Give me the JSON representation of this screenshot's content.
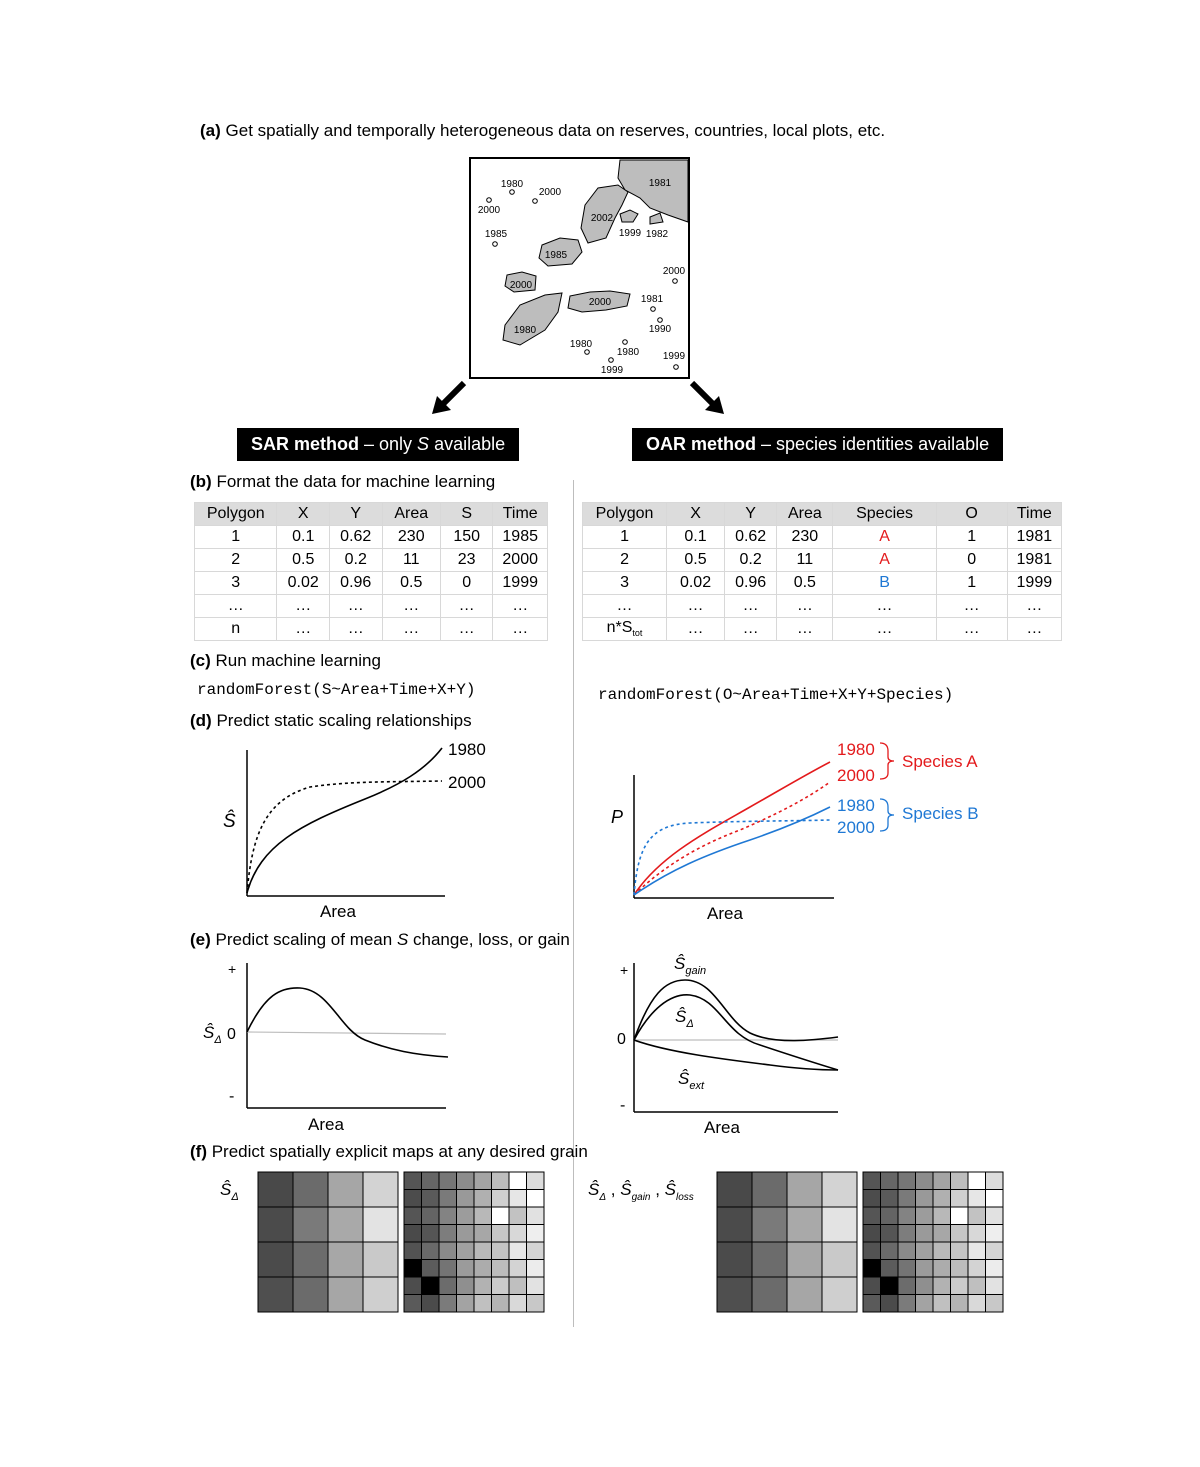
{
  "steps": {
    "a": {
      "letter": "(a)",
      "text": "Get spatially and temporally heterogeneous data on reserves, countries, local plots, etc."
    },
    "b": {
      "letter": "(b)",
      "text": "Format the data for machine learning"
    },
    "c": {
      "letter": "(c)",
      "text": "Run machine learning"
    },
    "d": {
      "letter": "(d)",
      "text": "Predict static scaling relationships"
    },
    "e": {
      "letter": "(e)",
      "text_pre": "Predict scaling of mean ",
      "text_s": "S",
      "text_post": " change, loss, or gain"
    },
    "f": {
      "letter": "(f)",
      "text": "Predict spatially explicit maps at any desired grain"
    }
  },
  "map": {
    "points": [
      {
        "label": "1980"
      },
      {
        "label": "2000"
      },
      {
        "label": "2000"
      },
      {
        "label": "1985"
      },
      {
        "label": "2000"
      },
      {
        "label": "1981"
      },
      {
        "label": "1990"
      },
      {
        "label": "1999"
      },
      {
        "label": "1980"
      },
      {
        "label": "1980"
      },
      {
        "label": "1999"
      }
    ],
    "polygons": [
      {
        "label": "1981"
      },
      {
        "label": "2002"
      },
      {
        "label": "1999"
      },
      {
        "label": "1982"
      },
      {
        "label": "1985"
      },
      {
        "label": "2000"
      },
      {
        "label": "2000"
      },
      {
        "label": "1980"
      }
    ]
  },
  "sar": {
    "banner_bold": "SAR method",
    "banner_pre": " – only ",
    "banner_s": "S",
    "banner_post": " available",
    "table": {
      "headers": [
        "Polygon",
        "X",
        "Y",
        "Area",
        "S",
        "Time"
      ],
      "rows": [
        [
          "1",
          "0.1",
          "0.62",
          "230",
          "150",
          "1985"
        ],
        [
          "2",
          "0.5",
          "0.2",
          "11",
          "23",
          "2000"
        ],
        [
          "3",
          "0.02",
          "0.96",
          "0.5",
          "0",
          "1999"
        ],
        [
          "…",
          "…",
          "…",
          "…",
          "…",
          "…"
        ],
        [
          "n",
          "…",
          "…",
          "…",
          "…",
          "…"
        ]
      ]
    },
    "code": "randomForest(S~Area+Time+X+Y)",
    "static_plot": {
      "ylabel": "Ŝ",
      "xlabel": "Area",
      "series": [
        "1980",
        "2000"
      ]
    },
    "change_plot": {
      "ylabel": "Ŝ",
      "ysub": "Δ",
      "plus": "+",
      "zero": "0",
      "minus": "-",
      "xlabel": "Area"
    },
    "maps": {
      "label": "Ŝ",
      "label_sub": "Δ"
    }
  },
  "oar": {
    "banner_bold": "OAR method",
    "banner_rest": " – species identities available",
    "table": {
      "headers": [
        "Polygon",
        "X",
        "Y",
        "Area",
        "Species",
        "O",
        "Time"
      ],
      "rows": [
        [
          "1",
          "0.1",
          "0.62",
          "230",
          "A",
          "1",
          "1981"
        ],
        [
          "2",
          "0.5",
          "0.2",
          "11",
          "A",
          "0",
          "1981"
        ],
        [
          "3",
          "0.02",
          "0.96",
          "0.5",
          "B",
          "1",
          "1999"
        ],
        [
          "…",
          "…",
          "…",
          "…",
          "…",
          "…",
          "…"
        ],
        [
          "n*S",
          "…",
          "…",
          "…",
          "…",
          "…",
          "…"
        ]
      ],
      "last_row_sub": "tot",
      "species_colors": {
        "A": "#e31a1c",
        "B": "#1f78d4"
      }
    },
    "code": "randomForest(O~Area+Time+X+Y+Species)",
    "static_plot": {
      "ylabel": "P",
      "xlabel": "Area",
      "species": [
        {
          "name": "Species A",
          "years": [
            "1980",
            "2000"
          ],
          "color": "#e31a1c"
        },
        {
          "name": "Species B",
          "years": [
            "1980",
            "2000"
          ],
          "color": "#1f78d4"
        }
      ]
    },
    "change_plot": {
      "plus": "+",
      "zero": "0",
      "minus": "-",
      "xlabel": "Area",
      "s_symbol": "Ŝ",
      "gain_sub": "gain",
      "delta_sub": "Δ",
      "ext_sub": "ext"
    },
    "maps": {
      "s_symbol": "Ŝ",
      "sub1": "Δ",
      "sub2": "gain",
      "sub3": "loss",
      "sep": " , "
    }
  },
  "grids": {
    "coarse": [
      [
        "#494949",
        "#6b6b6b",
        "#a6a6a6",
        "#d3d3d3"
      ],
      [
        "#4b4b4b",
        "#7a7a7a",
        "#a9a9a9",
        "#e3e3e3"
      ],
      [
        "#4b4b4b",
        "#6c6c6c",
        "#a7a7a7",
        "#c9c9c9"
      ],
      [
        "#4f4f4f",
        "#6b6b6b",
        "#a6a6a6",
        "#cfcfcf"
      ]
    ],
    "fine": [
      [
        "#555555",
        "#666666",
        "#767676",
        "#8c8c8c",
        "#a4a4a4",
        "#bdbdbd",
        "#ffffff",
        "#dcdcdc"
      ],
      [
        "#4c4c4c",
        "#5a5a5a",
        "#7a7a7a",
        "#999999",
        "#b0b0b0",
        "#cfcfcf",
        "#e6e6e6",
        "#ffffff"
      ],
      [
        "#555555",
        "#646464",
        "#838383",
        "#9c9c9c",
        "#b8b8b8",
        "#ffffff",
        "#c2c2c2",
        "#e1e1e1"
      ],
      [
        "#4a4a4a",
        "#555555",
        "#7d7d7d",
        "#9a9a9a",
        "#a7a7a7",
        "#c6c6c6",
        "#d8d8d8",
        "#eeeeee"
      ],
      [
        "#535353",
        "#6a6a6a",
        "#8a8a8a",
        "#a1a1a1",
        "#b9b9b9",
        "#c4c4c4",
        "#e7e7e7",
        "#d4d4d4"
      ],
      [
        "#000000",
        "#5c5c5c",
        "#747474",
        "#9b9b9b",
        "#acacac",
        "#bcbcbc",
        "#d3d3d3",
        "#ececec"
      ],
      [
        "#4d4d4d",
        "#000000",
        "#6c6c6c",
        "#8f8f8f",
        "#b2b2b2",
        "#cbcbcb",
        "#bfbfbf",
        "#e2e2e2"
      ],
      [
        "#5a5a5a",
        "#4b4b4b",
        "#7b7b7b",
        "#a3a3a3",
        "#c0c0c0",
        "#b4b4b4",
        "#d9d9d9",
        "#c8c8c8"
      ]
    ]
  }
}
